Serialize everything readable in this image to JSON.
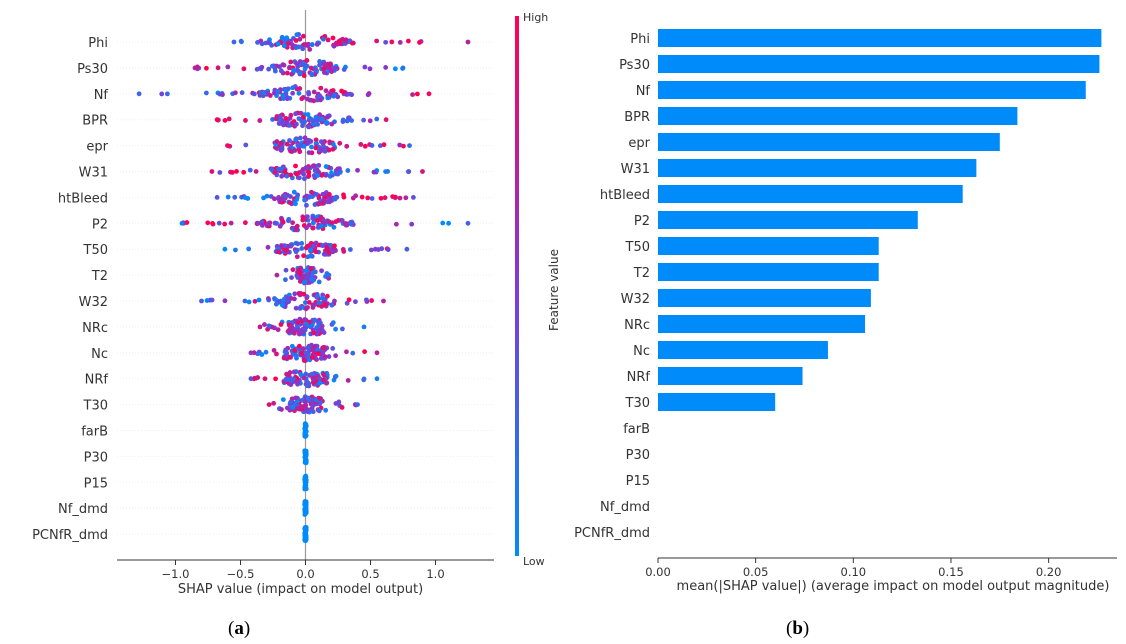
{
  "chart_data": [
    {
      "type": "scatter",
      "subtype": "shap-beeswarm",
      "xlabel": "SHAP value (impact on model output)",
      "xlim": [
        -1.45,
        1.45
      ],
      "xticks": [
        "−1.0",
        "−0.5",
        "0.0",
        "0.5",
        "1.0"
      ],
      "xtick_values": [
        -1.0,
        -0.5,
        0.0,
        0.5,
        1.0
      ],
      "features": [
        "Phi",
        "Ps30",
        "Nf",
        "BPR",
        "epr",
        "W31",
        "htBleed",
        "P2",
        "T50",
        "T2",
        "W32",
        "NRc",
        "Nc",
        "NRf",
        "T30",
        "farB",
        "P30",
        "P15",
        "Nf_dmd",
        "PCNfR_dmd"
      ],
      "spread": [
        {
          "feature": "Phi",
          "min": -0.55,
          "max": 1.25
        },
        {
          "feature": "Ps30",
          "min": -0.85,
          "max": 0.75
        },
        {
          "feature": "Nf",
          "min": -1.28,
          "max": 0.95
        },
        {
          "feature": "BPR",
          "min": -0.68,
          "max": 0.62
        },
        {
          "feature": "epr",
          "min": -0.6,
          "max": 0.8
        },
        {
          "feature": "W31",
          "min": -0.72,
          "max": 0.9
        },
        {
          "feature": "htBleed",
          "min": -0.68,
          "max": 0.83
        },
        {
          "feature": "P2",
          "min": -0.95,
          "max": 1.25
        },
        {
          "feature": "T50",
          "min": -0.62,
          "max": 0.78
        },
        {
          "feature": "T2",
          "min": -0.22,
          "max": 0.18
        },
        {
          "feature": "W32",
          "min": -0.8,
          "max": 0.6
        },
        {
          "feature": "NRc",
          "min": -0.35,
          "max": 0.45
        },
        {
          "feature": "Nc",
          "min": -0.42,
          "max": 0.55
        },
        {
          "feature": "NRf",
          "min": -0.42,
          "max": 0.55
        },
        {
          "feature": "T30",
          "min": -0.28,
          "max": 0.4
        },
        {
          "feature": "farB",
          "min": 0.0,
          "max": 0.0
        },
        {
          "feature": "P30",
          "min": 0.0,
          "max": 0.0
        },
        {
          "feature": "P15",
          "min": 0.0,
          "max": 0.0
        },
        {
          "feature": "Nf_dmd",
          "min": 0.0,
          "max": 0.0
        },
        {
          "feature": "PCNfR_dmd",
          "min": 0.0,
          "max": 0.0
        }
      ],
      "colorbar": {
        "label": "Feature value",
        "high": "High",
        "low": "Low",
        "high_color": "#ff0052",
        "low_color": "#008bfb"
      },
      "grid": false,
      "legend": "colorbar right"
    },
    {
      "type": "bar",
      "orientation": "horizontal",
      "categories": [
        "Phi",
        "Ps30",
        "Nf",
        "BPR",
        "epr",
        "W31",
        "htBleed",
        "P2",
        "T50",
        "T2",
        "W32",
        "NRc",
        "Nc",
        "NRf",
        "T30",
        "farB",
        "P30",
        "P15",
        "Nf_dmd",
        "PCNfR_dmd"
      ],
      "values": [
        0.227,
        0.226,
        0.219,
        0.184,
        0.175,
        0.163,
        0.156,
        0.133,
        0.113,
        0.113,
        0.109,
        0.106,
        0.087,
        0.074,
        0.06,
        0.0,
        0.0,
        0.0,
        0.0,
        0.0
      ],
      "xlabel": "mean(|SHAP value|) (average impact on model output magnitude)",
      "xlim": [
        0.0,
        0.235
      ],
      "xticks": [
        "0.00",
        "0.05",
        "0.10",
        "0.15",
        "0.20"
      ],
      "xtick_values": [
        0.0,
        0.05,
        0.1,
        0.15,
        0.2
      ],
      "bar_color": "#008bfb",
      "grid": false
    }
  ],
  "panel_labels": {
    "a": "a",
    "b": "b"
  }
}
